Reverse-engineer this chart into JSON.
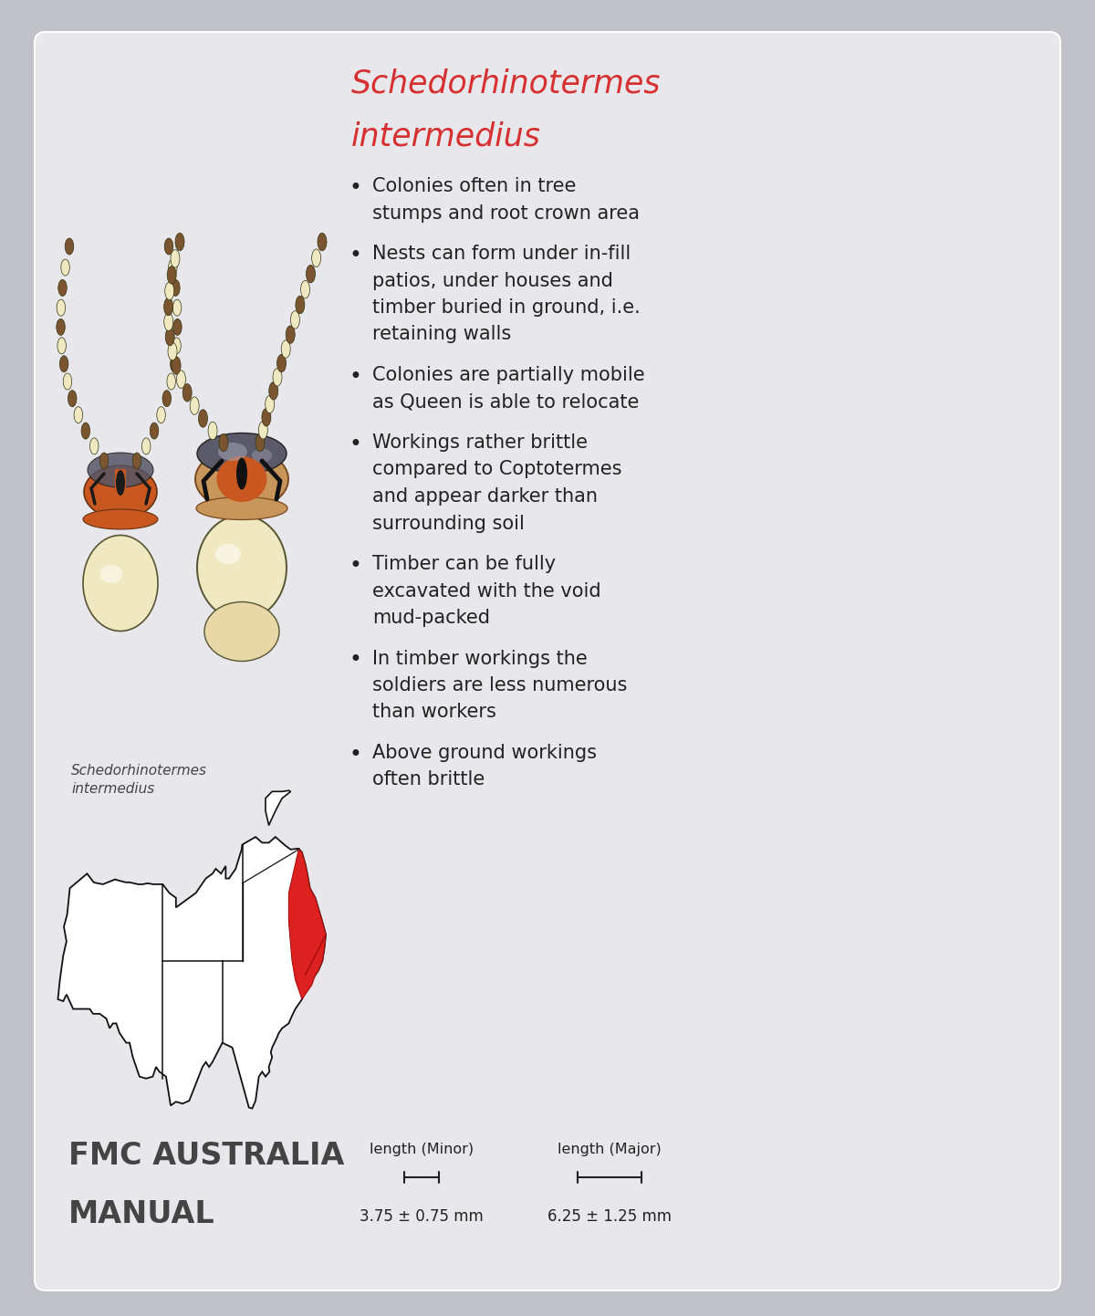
{
  "title_line1": "Schedorhinotermes",
  "title_line2": "intermedius",
  "title_color": "#d63030",
  "background_color": "#c0c0c8",
  "card_color": "#e8e8ec",
  "bullet_points": [
    "Colonies often in tree\nstumps and root crown area",
    "Nests can form under in-fill\npatios, under houses and\ntimber buried in ground, i.e.\nretaining walls",
    "Colonies are partially mobile\nas Queen is able to relocate",
    "Workings rather brittle\ncompared to Coptotermes\nand appear darker than\nsurrounding soil",
    "Timber can be fully\nexcavated with the void\nmud-packed",
    "In timber workings the\nsoldiers are less numerous\nthan workers",
    "Above ground workings\noften brittle"
  ],
  "caption_italic": "Schedorhinotermes\nintermedius",
  "fmc_text_line1": "FMC AUSTRALIA",
  "fmc_text_line2": "MANUAL",
  "length_minor_label": "length (Minor)",
  "length_major_label": "length (Major)",
  "length_minor_value": "3.75 ± 0.75 mm",
  "length_major_value": "6.25 ± 1.25 mm",
  "text_color": "#222222",
  "bullet_color": "#222222",
  "fmc_color": "#444444",
  "body_cream": "#f0e8c0",
  "body_cream_dark": "#e8d8a8",
  "head_orange": "#c85820",
  "head_dark": "#8b4015",
  "mandible_dark": "#444444",
  "antenna_brown": "#7a5530",
  "antenna_cream": "#f0e8c0",
  "map_outline": "#111111",
  "map_fill": "#ffffff",
  "red_highlight": "#dd2020",
  "tas_fill": "#ffffff"
}
